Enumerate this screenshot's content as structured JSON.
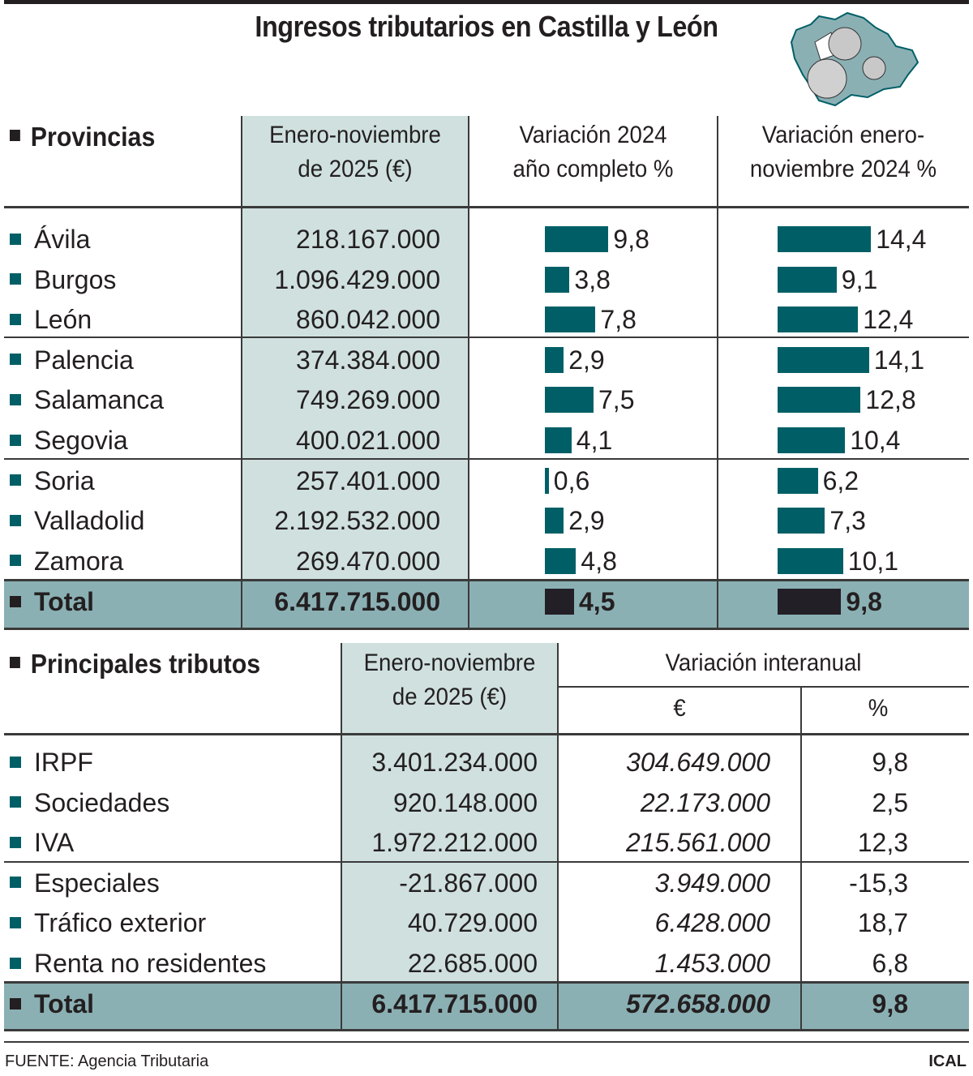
{
  "title": "Ingresos tributarios en Castilla y León",
  "colors": {
    "bar": "#005f66",
    "total_bar": "#231f26",
    "highlight_column": "#cfe0df",
    "total_row": "#8bb0b4"
  },
  "provinces_table": {
    "section": "Provincias",
    "headers": [
      "Enero-noviembre de 2025 (€)",
      "Variación 2024 año completo %",
      "Variación enero-noviembre 2024 %"
    ],
    "header_lines": [
      [
        "Enero-noviembre",
        "de 2025 (€)"
      ],
      [
        "Variación 2024",
        "año completo %"
      ],
      [
        "Variación enero-",
        "noviembre 2024 %"
      ]
    ],
    "rows": [
      {
        "name": "Ávila",
        "amount": "218.167.000",
        "var_year": 9.8,
        "var_year_label": "9,8",
        "var_jan_nov": 14.4,
        "var_jan_nov_label": "14,4"
      },
      {
        "name": "Burgos",
        "amount": "1.096.429.000",
        "var_year": 3.8,
        "var_year_label": "3,8",
        "var_jan_nov": 9.1,
        "var_jan_nov_label": "9,1"
      },
      {
        "name": "León",
        "amount": "860.042.000",
        "var_year": 7.8,
        "var_year_label": "7,8",
        "var_jan_nov": 12.4,
        "var_jan_nov_label": "12,4"
      },
      {
        "name": "Palencia",
        "amount": "374.384.000",
        "var_year": 2.9,
        "var_year_label": "2,9",
        "var_jan_nov": 14.1,
        "var_jan_nov_label": "14,1"
      },
      {
        "name": "Salamanca",
        "amount": "749.269.000",
        "var_year": 7.5,
        "var_year_label": "7,5",
        "var_jan_nov": 12.8,
        "var_jan_nov_label": "12,8"
      },
      {
        "name": "Segovia",
        "amount": "400.021.000",
        "var_year": 4.1,
        "var_year_label": "4,1",
        "var_jan_nov": 10.4,
        "var_jan_nov_label": "10,4"
      },
      {
        "name": "Soria",
        "amount": "257.401.000",
        "var_year": 0.6,
        "var_year_label": "0,6",
        "var_jan_nov": 6.2,
        "var_jan_nov_label": "6,2"
      },
      {
        "name": "Valladolid",
        "amount": "2.192.532.000",
        "var_year": 2.9,
        "var_year_label": "2,9",
        "var_jan_nov": 7.3,
        "var_jan_nov_label": "7,3"
      },
      {
        "name": "Zamora",
        "amount": "269.470.000",
        "var_year": 4.8,
        "var_year_label": "4,8",
        "var_jan_nov": 10.1,
        "var_jan_nov_label": "10,1"
      }
    ],
    "total": {
      "name": "Total",
      "amount": "6.417.715.000",
      "var_year": 4.5,
      "var_year_label": "4,5",
      "var_jan_nov": 9.8,
      "var_jan_nov_label": "9,8"
    }
  },
  "taxes_table": {
    "section": "Principales tributos",
    "header_lines": [
      "Enero-noviembre",
      "de 2025 (€)"
    ],
    "group_header": "Variación interanual",
    "sub_headers": [
      "€",
      "%"
    ],
    "rows": [
      {
        "name": "IRPF",
        "amount": "3.401.234.000",
        "var_eur": "304.649.000",
        "var_pct": "9,8"
      },
      {
        "name": "Sociedades",
        "amount": "920.148.000",
        "var_eur": "22.173.000",
        "var_pct": "2,5"
      },
      {
        "name": "IVA",
        "amount": "1.972.212.000",
        "var_eur": "215.561.000",
        "var_pct": "12,3"
      },
      {
        "name": "Especiales",
        "amount": "-21.867.000",
        "var_eur": "3.949.000",
        "var_pct": "-15,3"
      },
      {
        "name": "Tráfico exterior",
        "amount": "40.729.000",
        "var_eur": "6.428.000",
        "var_pct": "18,7"
      },
      {
        "name": "Renta no residentes",
        "amount": "22.685.000",
        "var_eur": "1.453.000",
        "var_pct": "6,8"
      }
    ],
    "total": {
      "name": "Total",
      "amount": "6.417.715.000",
      "var_eur": "572.658.000",
      "var_pct": "9,8"
    }
  },
  "footer": {
    "source": "FUENTE: Agencia Tributaria",
    "credit": "ICAL"
  },
  "chart_data": {
    "type": "bar",
    "title": "Ingresos tributarios en Castilla y León",
    "categories": [
      "Ávila",
      "Burgos",
      "León",
      "Palencia",
      "Salamanca",
      "Segovia",
      "Soria",
      "Valladolid",
      "Zamora",
      "Total"
    ],
    "series": [
      {
        "name": "Variación 2024 año completo %",
        "values": [
          9.8,
          3.8,
          7.8,
          2.9,
          7.5,
          4.1,
          0.6,
          2.9,
          4.8,
          4.5
        ]
      },
      {
        "name": "Variación enero-noviembre 2024 %",
        "values": [
          14.4,
          9.1,
          12.4,
          14.1,
          12.8,
          10.4,
          6.2,
          7.3,
          10.1,
          9.8
        ]
      }
    ],
    "orientation": "horizontal"
  }
}
